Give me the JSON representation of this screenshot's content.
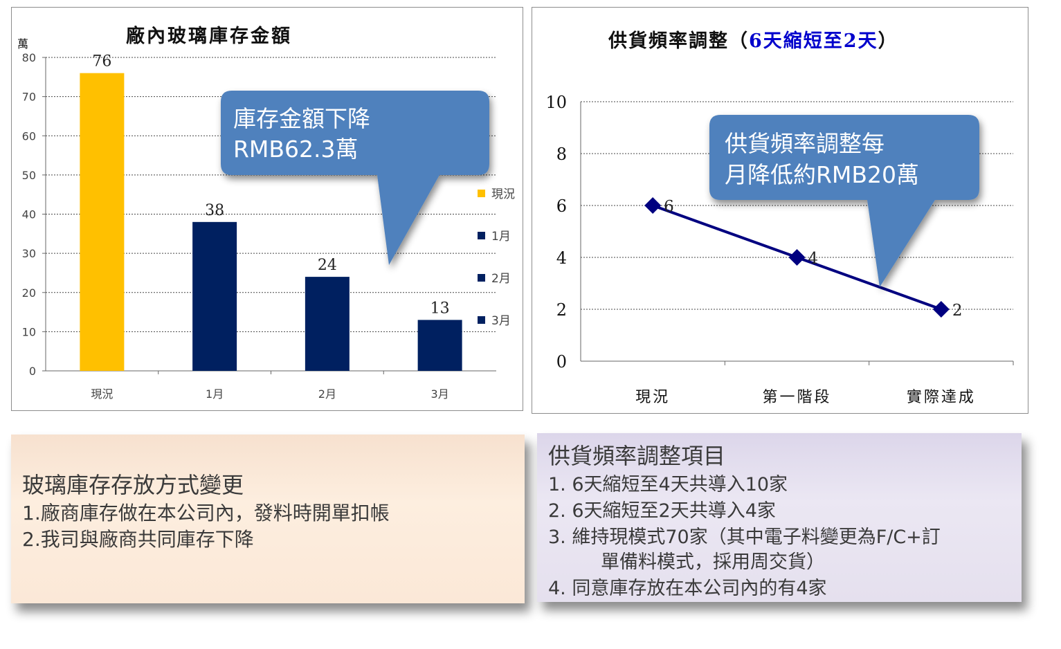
{
  "chart_data": [
    {
      "type": "bar",
      "title": "廠內玻璃庫存金額",
      "ylabel": "萬",
      "categories": [
        "現況",
        "1月",
        "2月",
        "3月"
      ],
      "values": [
        76,
        38,
        24,
        13
      ],
      "colors": [
        "#ffc000",
        "#002060",
        "#002060",
        "#002060"
      ],
      "ylim": [
        0,
        80
      ],
      "yticks": [
        "0",
        "10",
        "20",
        "30",
        "40",
        "50",
        "60",
        "70",
        "80"
      ],
      "grid": true,
      "legend": {
        "position": "right",
        "entries": [
          "現況",
          "1月",
          "2月",
          "3月"
        ]
      },
      "annotation": [
        "庫存金額下降",
        "RMB62.3萬"
      ]
    },
    {
      "type": "line",
      "title": "供貨頻率調整（",
      "title_highlight": "6天縮短至2天",
      "title_end": "）",
      "title_highlight_color": "#0000cc",
      "categories": [
        "現況",
        "第一階段",
        "實際達成"
      ],
      "values": [
        6,
        4,
        2
      ],
      "series_color": "#000080",
      "ylim": [
        0,
        10
      ],
      "yticks": [
        "0",
        "2",
        "4",
        "6",
        "8",
        "10"
      ],
      "grid": true,
      "annotation": [
        "供貨頻率調整每",
        "月降低約RMB20萬"
      ]
    }
  ],
  "left_box": {
    "title": "玻璃庫存存放方式變更",
    "lines": [
      "1.廠商庫存做在本公司內，發料時開單扣帳",
      "2.我司與廠商共同庫存下降"
    ]
  },
  "right_box": {
    "title": "供貨頻率調整項目",
    "lines": [
      "1. 6天縮短至4天共導入10家",
      "2. 6天縮短至2天共導入4家",
      "3. 維持現模式70家（其中電子料變更為F/C+訂",
      "單備料模式，採用周交貨）",
      "4. 同意庫存放在本公司內的有4家"
    ]
  },
  "colors": {
    "callout": "#4f81bd",
    "navy": "#002060",
    "gold": "#ffc000"
  }
}
